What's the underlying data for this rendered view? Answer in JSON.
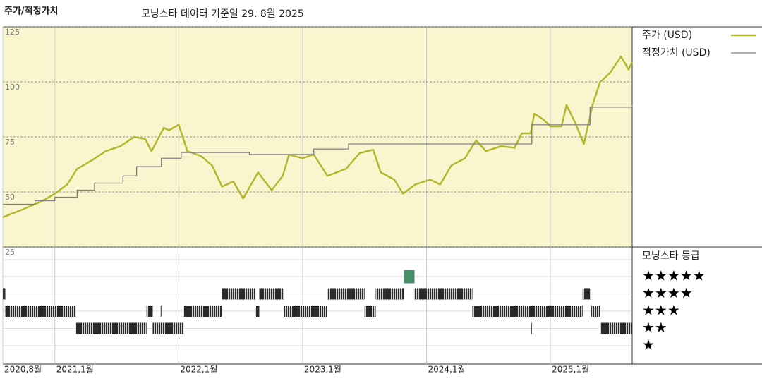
{
  "chart_data": {
    "type": "line",
    "title": "주가/적정가치",
    "subtitle": "모닝스타 데이터 기준일 29. 8월 2025",
    "xlim": [
      2020.58,
      2025.66
    ],
    "xticks": [
      {
        "value": 2020.58,
        "label": "2020,8월"
      },
      {
        "value": 2021.0,
        "label": "2021,1월"
      },
      {
        "value": 2022.0,
        "label": "2022,1월"
      },
      {
        "value": 2023.0,
        "label": "2023,1월"
      },
      {
        "value": 2024.0,
        "label": "2024,1월"
      },
      {
        "value": 2025.0,
        "label": "2025,1월"
      }
    ],
    "ylim": [
      25,
      125
    ],
    "yticks": [
      25,
      50,
      75,
      100,
      125
    ],
    "grid": true,
    "series": [
      {
        "name": "주가 (USD)",
        "color": "#b3b62a",
        "x": [
          2020.58,
          2020.73,
          2020.9,
          2021.0,
          2021.1,
          2021.18,
          2021.3,
          2021.41,
          2021.53,
          2021.64,
          2021.73,
          2021.78,
          2021.88,
          2021.92,
          2022.0,
          2022.07,
          2022.18,
          2022.27,
          2022.35,
          2022.44,
          2022.52,
          2022.64,
          2022.75,
          2022.84,
          2022.89,
          2023.0,
          2023.09,
          2023.2,
          2023.35,
          2023.46,
          2023.57,
          2023.63,
          2023.74,
          2023.81,
          2023.91,
          2024.03,
          2024.11,
          2024.2,
          2024.31,
          2024.4,
          2024.48,
          2024.6,
          2024.71,
          2024.77,
          2024.84,
          2024.87,
          2024.94,
          2025.0,
          2025.09,
          2025.13,
          2025.2,
          2025.27,
          2025.34,
          2025.4,
          2025.48,
          2025.57,
          2025.63,
          2025.66
        ],
        "values": [
          38.5,
          41.8,
          45.9,
          49.2,
          53.4,
          60.5,
          64.4,
          68.5,
          70.8,
          75,
          74,
          68.5,
          79.2,
          78,
          80.5,
          68.5,
          66.3,
          62,
          52.4,
          54.8,
          47,
          58.9,
          50.8,
          57.3,
          66.9,
          65.3,
          67,
          57.3,
          60.5,
          67.6,
          69.2,
          58.9,
          55.6,
          49.2,
          53.4,
          55.6,
          53.4,
          62,
          65.3,
          73.4,
          68.5,
          70.8,
          70,
          76.6,
          76.6,
          85.6,
          83,
          79.8,
          79.8,
          89.5,
          81.4,
          71.8,
          89.5,
          99.8,
          104,
          111.5,
          105.6,
          108.9
        ]
      },
      {
        "name": "적정가치 (USD)",
        "color": "#808080",
        "drawstyle": "steps-post",
        "x": [
          2020.58,
          2020.84,
          2021.0,
          2021.18,
          2021.32,
          2021.55,
          2021.66,
          2021.86,
          2022.02,
          2022.57,
          2023.09,
          2023.37,
          2024.85,
          2025.32,
          2025.66
        ],
        "values": [
          44.4,
          46,
          47.6,
          50.8,
          54,
          57.3,
          61.5,
          65.3,
          67.9,
          67,
          69.5,
          71.8,
          80.5,
          88.5,
          89.5
        ]
      }
    ],
    "rating": {
      "title": "모닝스타 등급",
      "levels": [
        5,
        4,
        3,
        2,
        1
      ],
      "level_labels": [
        "★★★★★",
        "★★★★",
        "★★★",
        "★★",
        "★"
      ],
      "level_colors": [
        "#4a8f6c",
        "#333333",
        "#333333",
        "#333333",
        "#333333"
      ],
      "segments": [
        {
          "rating": 4,
          "start": 2020.58,
          "end": 2020.6
        },
        {
          "rating": 3,
          "start": 2020.6,
          "end": 2021.17
        },
        {
          "rating": 2,
          "start": 2021.17,
          "end": 2021.74
        },
        {
          "rating": 3,
          "start": 2021.74,
          "end": 2021.79
        },
        {
          "rating": 2,
          "start": 2021.79,
          "end": 2022.04
        },
        {
          "rating": 3,
          "start": 2021.85,
          "end": 2021.86
        },
        {
          "rating": 3,
          "start": 2022.04,
          "end": 2022.35
        },
        {
          "rating": 4,
          "start": 2022.35,
          "end": 2022.62
        },
        {
          "rating": 3,
          "start": 2022.62,
          "end": 2022.65
        },
        {
          "rating": 4,
          "start": 2022.65,
          "end": 2022.85
        },
        {
          "rating": 3,
          "start": 2022.85,
          "end": 2023.2
        },
        {
          "rating": 4,
          "start": 2023.2,
          "end": 2023.5
        },
        {
          "rating": 3,
          "start": 2023.5,
          "end": 2023.59
        },
        {
          "rating": 4,
          "start": 2023.59,
          "end": 2023.82
        },
        {
          "rating": 5,
          "start": 2023.82,
          "end": 2023.9
        },
        {
          "rating": 4,
          "start": 2023.9,
          "end": 2024.37
        },
        {
          "rating": 3,
          "start": 2024.37,
          "end": 2025.26
        },
        {
          "rating": 2,
          "start": 2024.84,
          "end": 2024.85
        },
        {
          "rating": 4,
          "start": 2025.26,
          "end": 2025.33
        },
        {
          "rating": 3,
          "start": 2025.33,
          "end": 2025.4
        },
        {
          "rating": 2,
          "start": 2025.4,
          "end": 2025.66
        }
      ]
    }
  }
}
